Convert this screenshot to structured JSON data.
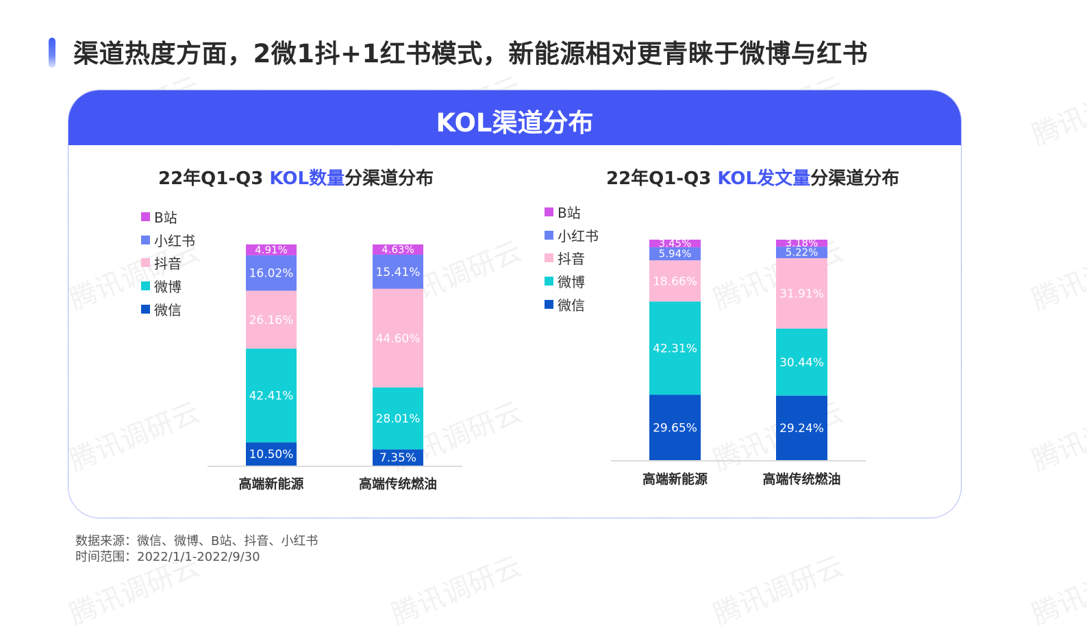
{
  "page": {
    "title": "渠道热度方面，2微1抖+1红书模式，新能源相对更青睐于微博与红书",
    "panel_title": "KOL渠道分布",
    "watermark": "腾讯调研云",
    "source_line1": "数据来源：微信、微博、B站、抖音、小红书",
    "source_line2": "时间范围：2022/1/1-2022/9/30"
  },
  "legend": [
    "B站",
    "小红书",
    "抖音",
    "微博",
    "微信"
  ],
  "colors": {
    "B站": "#d254e8",
    "小红书": "#6b82f5",
    "抖音": "#fdbad6",
    "微博": "#13cfd6",
    "微信": "#0c55c9",
    "accent": "#4457f4"
  },
  "chart_data": [
    {
      "type": "bar",
      "stacked": true,
      "title_prefix": "22年Q1-Q3 ",
      "title_highlight": "KOL数量",
      "title_suffix": "分渠道分布",
      "categories": [
        "高端新能源",
        "高端传统燃油"
      ],
      "series": [
        {
          "name": "微信",
          "values": [
            10.5,
            7.35
          ],
          "labels": [
            "10.50%",
            "7.35%"
          ]
        },
        {
          "name": "微博",
          "values": [
            42.41,
            28.01
          ],
          "labels": [
            "42.41%",
            "28.01%"
          ]
        },
        {
          "name": "抖音",
          "values": [
            26.16,
            44.6
          ],
          "labels": [
            "26.16%",
            "44.60%"
          ]
        },
        {
          "name": "小红书",
          "values": [
            16.02,
            15.41
          ],
          "labels": [
            "16.02%",
            "15.41%"
          ]
        },
        {
          "name": "B站",
          "values": [
            4.91,
            4.63
          ],
          "labels": [
            "4.91%",
            "4.63%"
          ]
        }
      ],
      "ylim": [
        0,
        100
      ],
      "legend_position": "left"
    },
    {
      "type": "bar",
      "stacked": true,
      "title_prefix": "22年Q1-Q3 ",
      "title_highlight": "KOL发文量",
      "title_suffix": "分渠道分布",
      "categories": [
        "高端新能源",
        "高端传统燃油"
      ],
      "series": [
        {
          "name": "微信",
          "values": [
            29.65,
            29.24
          ],
          "labels": [
            "29.65%",
            "29.24%"
          ]
        },
        {
          "name": "微博",
          "values": [
            42.31,
            30.44
          ],
          "labels": [
            "42.31%",
            "30.44%"
          ]
        },
        {
          "name": "抖音",
          "values": [
            18.66,
            31.91
          ],
          "labels": [
            "18.66%",
            "31.91%"
          ]
        },
        {
          "name": "小红书",
          "values": [
            5.94,
            5.22
          ],
          "labels": [
            "5.94%",
            "5.22%"
          ]
        },
        {
          "name": "B站",
          "values": [
            3.45,
            3.18
          ],
          "labels": [
            "3.45%",
            "3.18%"
          ]
        }
      ],
      "ylim": [
        0,
        100
      ],
      "legend_position": "left"
    }
  ]
}
